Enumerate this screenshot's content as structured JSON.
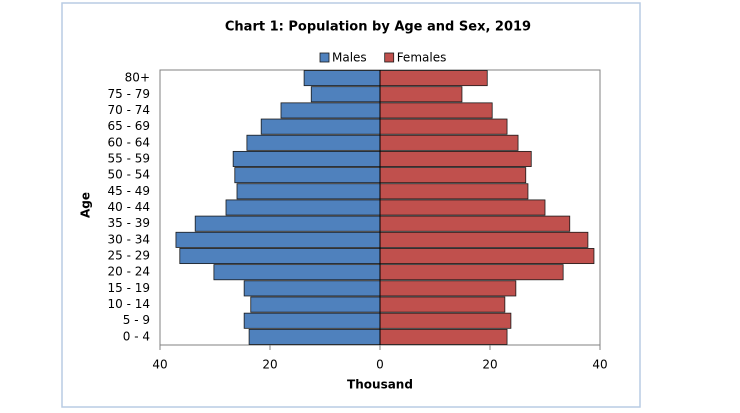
{
  "chart_data": {
    "type": "pyramid",
    "title": "Chart 1: Population by Age and Sex, 2019",
    "x_label": "Thousand",
    "y_label": "Age",
    "categories": [
      "80+",
      "75 - 79",
      "70 - 74",
      "65 - 69",
      "60 - 64",
      "55 - 59",
      "50 - 54",
      "45 - 49",
      "40 - 44",
      "35 - 39",
      "30 - 34",
      "25 - 29",
      "20 - 24",
      "15 - 19",
      "10 - 14",
      "5 -  9",
      "0 -  4"
    ],
    "series": [
      {
        "name": "Males",
        "color": "#4f81bd",
        "values": [
          -13.8,
          -12.5,
          -18,
          -21.6,
          -24.2,
          -26.7,
          -26.4,
          -26,
          -28,
          -33.6,
          -37.1,
          -36.4,
          -30.2,
          -24.7,
          -23.5,
          -24.7,
          -23.8
        ]
      },
      {
        "name": "Females",
        "color": "#c0504d",
        "values": [
          19.5,
          14.9,
          20.4,
          23.1,
          25.1,
          27.5,
          26.5,
          26.9,
          30,
          34.5,
          37.8,
          38.9,
          33.3,
          24.7,
          22.7,
          23.8,
          23.1
        ]
      }
    ],
    "xlim": [
      -40,
      40
    ],
    "xticks": [
      {
        "value": -40,
        "label": "40"
      },
      {
        "value": -20,
        "label": "20"
      },
      0,
      20,
      40
    ],
    "legend": "top"
  }
}
